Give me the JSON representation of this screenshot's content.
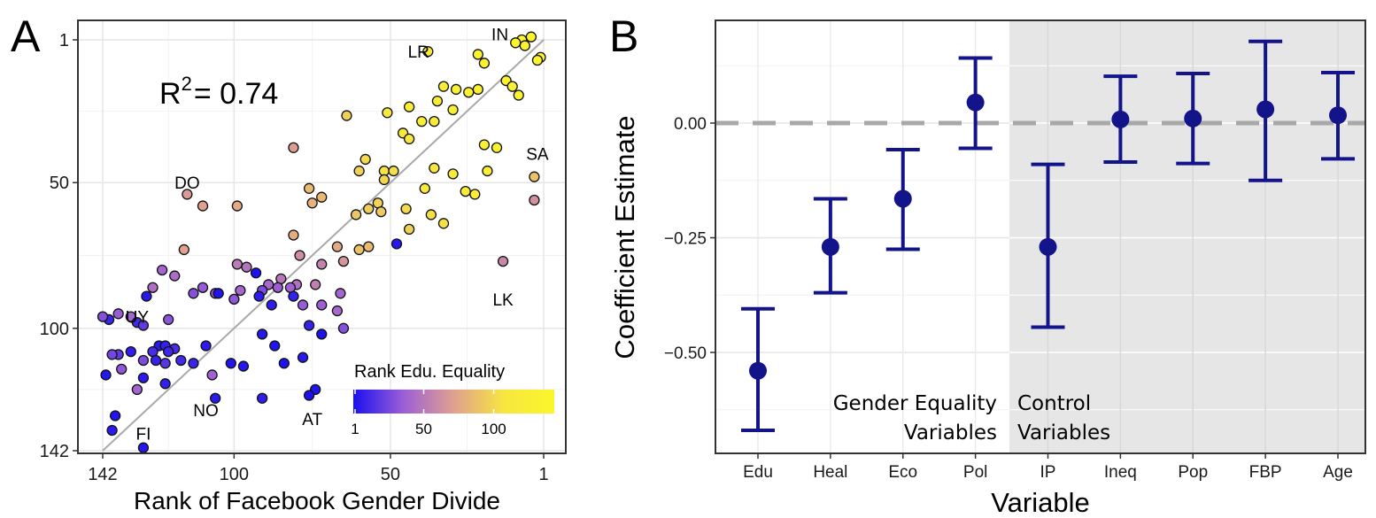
{
  "chart_data": [
    {
      "panel": "A",
      "type": "scatter",
      "xlabel": "Rank of Facebook Gender Divide",
      "ylabel": "",
      "xlim": [
        142,
        1
      ],
      "ylim": [
        142,
        1
      ],
      "x_ticks": [
        "142",
        "100",
        "50",
        "1"
      ],
      "y_ticks": [
        "1",
        "50",
        "100",
        "142"
      ],
      "annotation": {
        "text_main": "R",
        "text_sup": "2",
        "text_rest": "= 0.74"
      },
      "fit_line": {
        "x": [
          142,
          1
        ],
        "y": [
          142,
          1
        ]
      },
      "legend": {
        "title": "Rank Edu. Equality",
        "ticks": [
          "1",
          "50",
          "100"
        ],
        "range": [
          1,
          142
        ],
        "colors": [
          "#1a10f0",
          "#9c5fd6",
          "#e0a08f",
          "#f7e640",
          "#fbf62a"
        ]
      },
      "labels": [
        {
          "text": "LR",
          "x": 41,
          "y": 5
        },
        {
          "text": "IN",
          "x": 15,
          "y": -1
        },
        {
          "text": "SA",
          "x": 3,
          "y": 40
        },
        {
          "text": "DO",
          "x": 115,
          "y": 50
        },
        {
          "text": "LK",
          "x": 14,
          "y": 90
        },
        {
          "text": "UY",
          "x": 131,
          "y": 96
        },
        {
          "text": "NO",
          "x": 109,
          "y": 128
        },
        {
          "text": "AT",
          "x": 75,
          "y": 131
        },
        {
          "text": "FI",
          "x": 129,
          "y": 136
        }
      ],
      "points": [
        {
          "x": 8,
          "y": 1,
          "c": 140
        },
        {
          "x": 5,
          "y": 0,
          "c": 141
        },
        {
          "x": 10,
          "y": 2,
          "c": 139
        },
        {
          "x": 7,
          "y": 3,
          "c": 138
        },
        {
          "x": 2,
          "y": 7,
          "c": 137
        },
        {
          "x": 3,
          "y": 8,
          "c": 136
        },
        {
          "x": 38,
          "y": 5,
          "c": 120
        },
        {
          "x": 22,
          "y": 6,
          "c": 135
        },
        {
          "x": 20,
          "y": 9,
          "c": 132
        },
        {
          "x": 13,
          "y": 15,
          "c": 134
        },
        {
          "x": 11,
          "y": 17,
          "c": 131
        },
        {
          "x": 22,
          "y": 18,
          "c": 129
        },
        {
          "x": 9,
          "y": 20,
          "c": 133
        },
        {
          "x": 33,
          "y": 17,
          "c": 125
        },
        {
          "x": 29,
          "y": 18,
          "c": 127
        },
        {
          "x": 25,
          "y": 19,
          "c": 130
        },
        {
          "x": 35,
          "y": 22,
          "c": 118
        },
        {
          "x": 30,
          "y": 25,
          "c": 124
        },
        {
          "x": 44,
          "y": 24,
          "c": 122
        },
        {
          "x": 40,
          "y": 29,
          "c": 126
        },
        {
          "x": 36,
          "y": 29,
          "c": 121
        },
        {
          "x": 64,
          "y": 27,
          "c": 95
        },
        {
          "x": 51,
          "y": 26,
          "c": 110
        },
        {
          "x": 46,
          "y": 33,
          "c": 112
        },
        {
          "x": 44,
          "y": 35,
          "c": 108
        },
        {
          "x": 20,
          "y": 37,
          "c": 128
        },
        {
          "x": 16,
          "y": 38,
          "c": 130
        },
        {
          "x": 4,
          "y": 48,
          "c": 88
        },
        {
          "x": 81,
          "y": 38,
          "c": 70
        },
        {
          "x": 58,
          "y": 42,
          "c": 100
        },
        {
          "x": 60,
          "y": 46,
          "c": 96
        },
        {
          "x": 52,
          "y": 46,
          "c": 105
        },
        {
          "x": 49,
          "y": 46,
          "c": 102
        },
        {
          "x": 19,
          "y": 46,
          "c": 122
        },
        {
          "x": 30,
          "y": 47,
          "c": 116
        },
        {
          "x": 36,
          "y": 45,
          "c": 111
        },
        {
          "x": 52,
          "y": 49,
          "c": 98
        },
        {
          "x": 76,
          "y": 52,
          "c": 85
        },
        {
          "x": 39,
          "y": 52,
          "c": 113
        },
        {
          "x": 26,
          "y": 53,
          "c": 119
        },
        {
          "x": 23,
          "y": 54,
          "c": 117
        },
        {
          "x": 72,
          "y": 55,
          "c": 84
        },
        {
          "x": 54,
          "y": 57,
          "c": 97
        },
        {
          "x": 115,
          "y": 54,
          "c": 68
        },
        {
          "x": 110,
          "y": 58,
          "c": 72
        },
        {
          "x": 4,
          "y": 56,
          "c": 64
        },
        {
          "x": 99,
          "y": 58,
          "c": 76
        },
        {
          "x": 75,
          "y": 57,
          "c": 80
        },
        {
          "x": 53,
          "y": 60,
          "c": 92
        },
        {
          "x": 45,
          "y": 59,
          "c": 101
        },
        {
          "x": 57,
          "y": 59,
          "c": 94
        },
        {
          "x": 37,
          "y": 61,
          "c": 103
        },
        {
          "x": 61,
          "y": 61,
          "c": 90
        },
        {
          "x": 44,
          "y": 66,
          "c": 96
        },
        {
          "x": 33,
          "y": 64,
          "c": 104
        },
        {
          "x": 81,
          "y": 68,
          "c": 78
        },
        {
          "x": 48,
          "y": 71,
          "c": 4
        },
        {
          "x": 57,
          "y": 72,
          "c": 85
        },
        {
          "x": 60,
          "y": 73,
          "c": 88
        },
        {
          "x": 67,
          "y": 72,
          "c": 76
        },
        {
          "x": 116,
          "y": 73,
          "c": 72
        },
        {
          "x": 79,
          "y": 75,
          "c": 62
        },
        {
          "x": 14,
          "y": 77,
          "c": 58
        },
        {
          "x": 72,
          "y": 78,
          "c": 56
        },
        {
          "x": 65,
          "y": 77,
          "c": 66
        },
        {
          "x": 99,
          "y": 78,
          "c": 52
        },
        {
          "x": 96,
          "y": 79,
          "c": 48
        },
        {
          "x": 123,
          "y": 80,
          "c": 40
        },
        {
          "x": 93,
          "y": 81,
          "c": 2
        },
        {
          "x": 119,
          "y": 82,
          "c": 44
        },
        {
          "x": 85,
          "y": 83,
          "c": 50
        },
        {
          "x": 80,
          "y": 85,
          "c": 46
        },
        {
          "x": 89,
          "y": 85,
          "c": 42
        },
        {
          "x": 74,
          "y": 85,
          "c": 54
        },
        {
          "x": 86,
          "y": 86,
          "c": 36
        },
        {
          "x": 82,
          "y": 86,
          "c": 38
        },
        {
          "x": 126,
          "y": 86,
          "c": 45
        },
        {
          "x": 110,
          "y": 86,
          "c": 34
        },
        {
          "x": 113,
          "y": 88,
          "c": 30
        },
        {
          "x": 106,
          "y": 88,
          "c": 32
        },
        {
          "x": 98,
          "y": 87,
          "c": 41
        },
        {
          "x": 91,
          "y": 87,
          "c": 28
        },
        {
          "x": 105,
          "y": 88,
          "c": 3
        },
        {
          "x": 128,
          "y": 89,
          "c": 5
        },
        {
          "x": 92,
          "y": 89,
          "c": 6
        },
        {
          "x": 66,
          "y": 88,
          "c": 40
        },
        {
          "x": 81,
          "y": 89,
          "c": 8
        },
        {
          "x": 100,
          "y": 90,
          "c": 33
        },
        {
          "x": 88,
          "y": 92,
          "c": 7
        },
        {
          "x": 78,
          "y": 92,
          "c": 35
        },
        {
          "x": 72,
          "y": 92,
          "c": 37
        },
        {
          "x": 67,
          "y": 94,
          "c": 42
        },
        {
          "x": 137,
          "y": 95,
          "c": 35
        },
        {
          "x": 133,
          "y": 96,
          "c": 40
        },
        {
          "x": 140,
          "y": 97,
          "c": 10
        },
        {
          "x": 142,
          "y": 96,
          "c": 30
        },
        {
          "x": 131,
          "y": 98,
          "c": 12
        },
        {
          "x": 129,
          "y": 99,
          "c": 20
        },
        {
          "x": 121,
          "y": 97,
          "c": 32
        },
        {
          "x": 76,
          "y": 99,
          "c": 9
        },
        {
          "x": 65,
          "y": 100,
          "c": 30
        },
        {
          "x": 72,
          "y": 102,
          "c": 2
        },
        {
          "x": 91,
          "y": 102,
          "c": 4
        },
        {
          "x": 87,
          "y": 106,
          "c": 3
        },
        {
          "x": 124,
          "y": 106,
          "c": 5
        },
        {
          "x": 122,
          "y": 106,
          "c": 8
        },
        {
          "x": 119,
          "y": 107,
          "c": 14
        },
        {
          "x": 109,
          "y": 106,
          "c": 6
        },
        {
          "x": 121,
          "y": 108,
          "c": 11
        },
        {
          "x": 133,
          "y": 108,
          "c": 7
        },
        {
          "x": 137,
          "y": 109,
          "c": 20
        },
        {
          "x": 139,
          "y": 109,
          "c": 25
        },
        {
          "x": 126,
          "y": 108,
          "c": 13
        },
        {
          "x": 129,
          "y": 111,
          "c": 28
        },
        {
          "x": 125,
          "y": 111,
          "c": 9
        },
        {
          "x": 122,
          "y": 112,
          "c": 18
        },
        {
          "x": 117,
          "y": 111,
          "c": 12
        },
        {
          "x": 113,
          "y": 112,
          "c": 10
        },
        {
          "x": 101,
          "y": 112,
          "c": 3
        },
        {
          "x": 97,
          "y": 113,
          "c": 4
        },
        {
          "x": 84,
          "y": 112,
          "c": 2
        },
        {
          "x": 78,
          "y": 110,
          "c": 5
        },
        {
          "x": 136,
          "y": 114,
          "c": 33
        },
        {
          "x": 107,
          "y": 116,
          "c": 38
        },
        {
          "x": 141,
          "y": 116,
          "c": 4
        },
        {
          "x": 129,
          "y": 117,
          "c": 6
        },
        {
          "x": 122,
          "y": 119,
          "c": 8
        },
        {
          "x": 131,
          "y": 121,
          "c": 40
        },
        {
          "x": 74,
          "y": 121,
          "c": 3
        },
        {
          "x": 106,
          "y": 124,
          "c": 5
        },
        {
          "x": 91,
          "y": 124,
          "c": 7
        },
        {
          "x": 76,
          "y": 123,
          "c": 2
        },
        {
          "x": 138,
          "y": 130,
          "c": 3
        },
        {
          "x": 139,
          "y": 135,
          "c": 6
        },
        {
          "x": 129,
          "y": 141,
          "c": 4
        }
      ]
    },
    {
      "panel": "B",
      "type": "scatter",
      "xlabel": "Variable",
      "ylabel": "Coefficient Estimate",
      "ylim": [
        -0.7,
        0.22
      ],
      "y_ticks": [
        0.0,
        -0.25,
        -0.5
      ],
      "y_tick_labels": [
        "0.00",
        "−0.25",
        "−0.50"
      ],
      "reference_line": 0,
      "categories": [
        "Edu",
        "Heal",
        "Eco",
        "Pol",
        "IP",
        "Ineq",
        "Pop",
        "FBP",
        "Age"
      ],
      "estimates": [
        -0.54,
        -0.27,
        -0.165,
        0.045,
        -0.27,
        0.008,
        0.01,
        0.03,
        0.017
      ],
      "ci_low": [
        -0.67,
        -0.37,
        -0.275,
        -0.055,
        -0.445,
        -0.085,
        -0.088,
        -0.125,
        -0.078
      ],
      "ci_high": [
        -0.405,
        -0.165,
        -0.058,
        0.142,
        -0.09,
        0.102,
        0.108,
        0.178,
        0.11
      ],
      "groups": {
        "left_line1": "Gender Equality",
        "left_line2": "Variables",
        "right_line1": "Control",
        "right_line2": "Variables"
      },
      "colors": {
        "points": "#13138a",
        "shade": "#e6e6e6",
        "refline": "#a8a8a8"
      }
    }
  ],
  "panel_letters": {
    "a": "A",
    "b": "B"
  }
}
